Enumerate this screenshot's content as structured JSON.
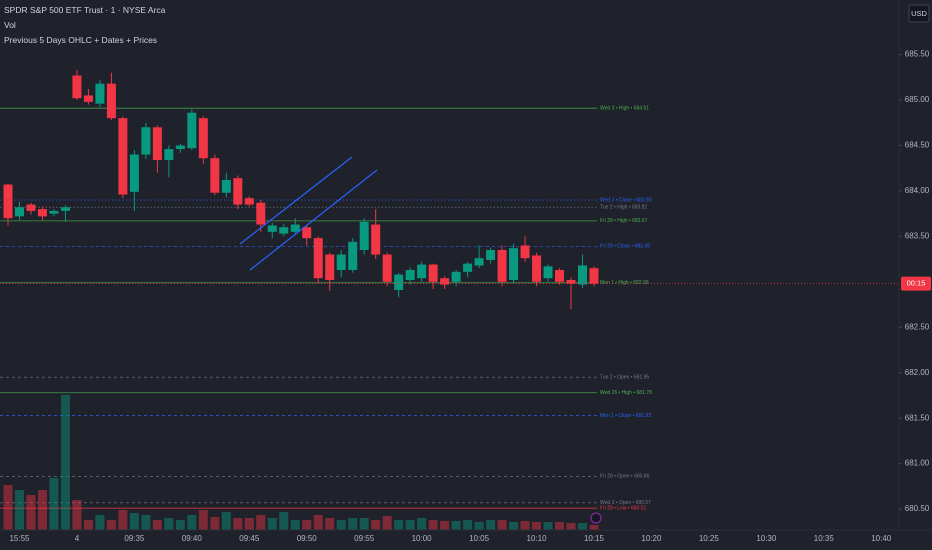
{
  "chart_data": {
    "type": "candlestick",
    "title": "SPDR S&P 500 ETF Trust · 1 · NYSE Arca",
    "indicator_volume": "Vol",
    "indicator_levels": "Previous 5 Days OHLC + Dates + Prices",
    "currency": "USD",
    "categories": [
      null,
      "15:55",
      null,
      null,
      null,
      null,
      "4",
      null,
      null,
      null,
      null,
      "09:35",
      null,
      null,
      null,
      null,
      "09:40",
      null,
      null,
      null,
      null,
      "09:45",
      null,
      null,
      null,
      null,
      "09:50",
      null,
      null,
      null,
      null,
      "09:55",
      null,
      null,
      null,
      null,
      "10:00",
      null,
      null,
      null,
      null,
      "10:05",
      null,
      null,
      null,
      null,
      "10:10",
      null,
      null,
      null,
      null,
      "10:15",
      null,
      null,
      null,
      null,
      "10:20",
      null,
      null,
      null,
      null,
      "10:25",
      null,
      null,
      null,
      null,
      "10:30",
      null,
      null,
      null,
      null,
      "10:35",
      null,
      null,
      null,
      null,
      "10:40"
    ],
    "open": [
      684.07,
      683.72,
      683.85,
      683.8,
      683.75,
      683.78,
      685.27,
      685.05,
      684.96,
      685.18,
      684.8,
      683.99,
      684.4,
      684.7,
      684.34,
      684.46,
      684.47,
      684.8,
      684.36,
      683.98,
      684.14,
      683.92,
      683.87,
      683.55,
      683.53,
      683.55,
      683.6,
      683.48,
      683.3,
      683.13,
      683.13,
      683.35,
      683.63,
      683.3,
      682.91,
      683.02,
      683.04,
      683.19,
      683.04,
      683.0,
      683.11,
      683.18,
      683.24,
      683.35,
      683.02,
      683.4,
      683.29,
      683.04,
      683.13,
      683.02,
      682.97,
      683.15,
      null,
      null,
      null,
      null,
      null,
      null,
      null,
      null,
      null,
      null,
      null,
      null,
      null,
      null,
      null,
      null,
      null,
      null,
      null,
      null,
      null,
      null,
      null,
      null,
      null
    ],
    "high": [
      684.08,
      683.88,
      683.87,
      683.83,
      683.8,
      683.84,
      685.33,
      685.12,
      685.22,
      685.3,
      684.82,
      684.45,
      684.75,
      684.72,
      684.5,
      684.52,
      684.9,
      684.82,
      684.4,
      684.2,
      684.17,
      683.94,
      683.9,
      683.65,
      683.64,
      683.7,
      683.62,
      683.5,
      683.32,
      683.35,
      683.48,
      683.7,
      683.8,
      683.32,
      683.1,
      683.16,
      683.22,
      683.2,
      683.06,
      683.13,
      683.22,
      683.4,
      683.38,
      683.4,
      683.42,
      683.5,
      683.32,
      683.19,
      683.15,
      683.05,
      683.3,
      683.17,
      null,
      null,
      null,
      null,
      null,
      null,
      null,
      null,
      null,
      null,
      null,
      null,
      null,
      null,
      null,
      null,
      null,
      null,
      null,
      null,
      null,
      null,
      null,
      null,
      null
    ],
    "low": [
      683.62,
      683.68,
      683.74,
      683.68,
      683.72,
      683.66,
      685.0,
      684.95,
      684.92,
      684.78,
      683.92,
      683.78,
      684.35,
      684.2,
      684.15,
      684.42,
      684.45,
      684.3,
      683.95,
      683.93,
      683.8,
      683.83,
      683.55,
      683.48,
      683.5,
      683.52,
      683.4,
      682.98,
      682.9,
      683.05,
      683.1,
      683.3,
      683.25,
      682.95,
      682.83,
      682.97,
      683.0,
      682.92,
      682.92,
      682.95,
      683.05,
      683.15,
      683.2,
      682.95,
      682.98,
      683.22,
      682.95,
      683.0,
      682.97,
      682.7,
      682.93,
      682.95,
      null,
      null,
      null,
      null,
      null,
      null,
      null,
      null,
      null,
      null,
      null,
      null,
      null,
      null,
      null,
      null,
      null,
      null,
      null,
      null,
      null,
      null,
      null,
      null,
      null
    ],
    "close": [
      683.7,
      683.82,
      683.78,
      683.72,
      683.78,
      683.82,
      685.02,
      684.98,
      685.18,
      684.8,
      683.96,
      684.4,
      684.7,
      684.34,
      684.46,
      684.5,
      684.86,
      684.36,
      683.98,
      684.12,
      683.85,
      683.85,
      683.63,
      683.62,
      683.6,
      683.63,
      683.48,
      683.04,
      683.02,
      683.3,
      683.44,
      683.66,
      683.3,
      683.0,
      683.08,
      683.13,
      683.19,
      683.0,
      682.97,
      683.11,
      683.2,
      683.26,
      683.35,
      683.0,
      683.37,
      683.26,
      683.0,
      683.17,
      683.0,
      682.98,
      683.18,
      682.98,
      null,
      null,
      null,
      null,
      null,
      null,
      null,
      null,
      null,
      null,
      null,
      null,
      null,
      null,
      null,
      null,
      null,
      null,
      null,
      null,
      null,
      null,
      null,
      null,
      null
    ],
    "volume": [
      45,
      40,
      35,
      40,
      52,
      135,
      30,
      10,
      15,
      10,
      20,
      17,
      15,
      10,
      12,
      10,
      15,
      20,
      13,
      18,
      12,
      12,
      15,
      12,
      18,
      10,
      10,
      15,
      12,
      10,
      12,
      12,
      10,
      14,
      10,
      10,
      12,
      10,
      9,
      9,
      10,
      8,
      10,
      10,
      8,
      9,
      8,
      8,
      8,
      7,
      7,
      5,
      null,
      null,
      null,
      null,
      null,
      null,
      null,
      null,
      null,
      null,
      null,
      null,
      null,
      null,
      null,
      null,
      null,
      null,
      null,
      null,
      null,
      null,
      null,
      null,
      null
    ],
    "up_color": "#089981",
    "down_color": "#f23645",
    "ylim": [
      680.27,
      686.1
    ],
    "yticks": [
      {
        "value": 680.5,
        "label": "680.50"
      },
      {
        "value": 681,
        "label": "681.00"
      },
      {
        "value": 681.5,
        "label": "681.50"
      },
      {
        "value": 682,
        "label": "682.00"
      },
      {
        "value": 682.5,
        "label": "682.50"
      },
      {
        "value": 683.5,
        "label": "683.50"
      },
      {
        "value": 684,
        "label": "684.00"
      },
      {
        "value": 684.5,
        "label": "684.50"
      },
      {
        "value": 685,
        "label": "685.00"
      },
      {
        "value": 685.5,
        "label": "685.50"
      }
    ],
    "levels": [
      {
        "label": "Wed 3 • High • 684.91",
        "value": 684.91,
        "color": "#4caf50",
        "style": "solid"
      },
      {
        "label": "Wed 3 • Close • 683.90",
        "value": 683.9,
        "color": "#2962ff",
        "style": "dotted"
      },
      {
        "label": "Tue 2 • High • 683.82",
        "value": 683.82,
        "color": "#787b86",
        "style": "dotted"
      },
      {
        "label": "Fri 29 • High • 683.67",
        "value": 683.67,
        "color": "#4caf50",
        "style": "solid"
      },
      {
        "label": "Fri 29 • Close • 683.39",
        "value": 683.39,
        "color": "#2962ff",
        "style": "dashed"
      },
      {
        "label": "Mon 1 • High • 682.99",
        "value": 682.99,
        "color": "#4caf50",
        "style": "solid"
      },
      {
        "label": "Tue 2 • Open • 681.95",
        "value": 681.95,
        "color": "#787b86",
        "style": "dashed"
      },
      {
        "label": "Wed 26 • High • 681.78",
        "value": 681.78,
        "color": "#4caf50",
        "style": "solid"
      },
      {
        "label": "Mon 1 • Close • 681.53",
        "value": 681.53,
        "color": "#2962ff",
        "style": "dashed"
      },
      {
        "label": "Fri 29 • Open • 680.86",
        "value": 680.86,
        "color": "#787b86",
        "style": "dashed"
      },
      {
        "label": "Wed 3 • Open • 680.57",
        "value": 680.57,
        "color": "#787b86",
        "style": "dashed"
      },
      {
        "label": "Fri 29 • Low • 680.51",
        "value": 680.51,
        "color": "#f23645",
        "style": "solid"
      }
    ],
    "price_tag": {
      "value": 682.98,
      "countdown": "00:15"
    }
  }
}
